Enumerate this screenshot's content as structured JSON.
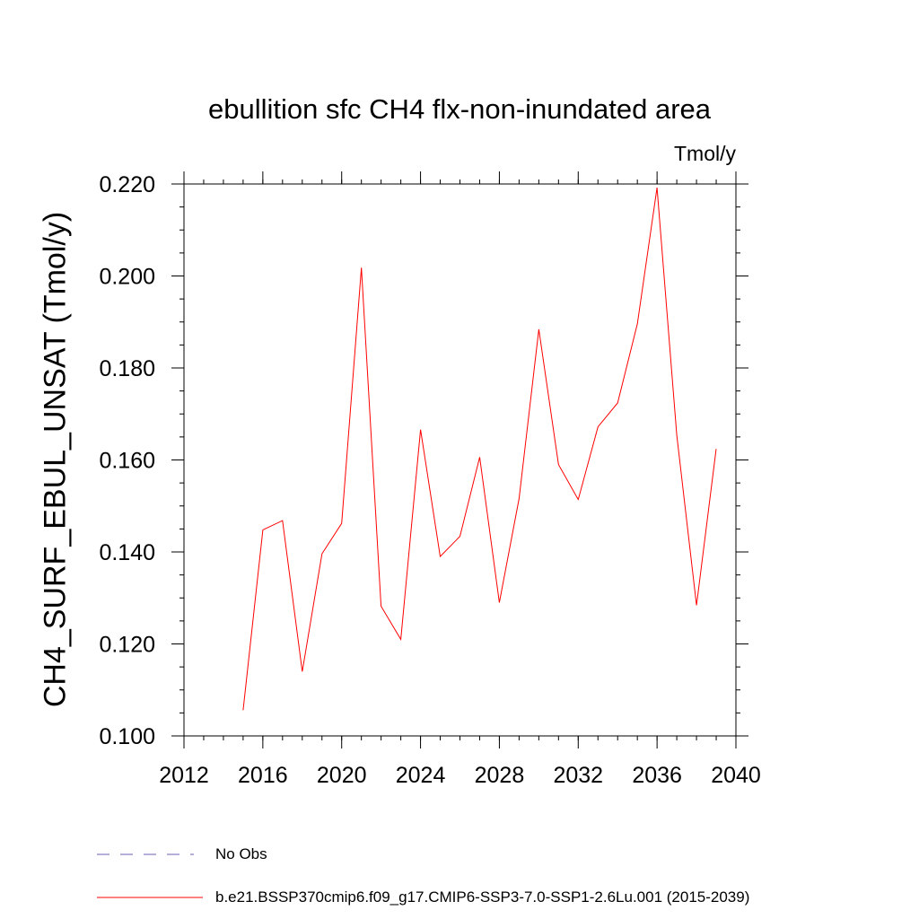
{
  "chart_data": {
    "type": "line",
    "title": "ebullition sfc CH4 flx-non-inundated area",
    "units_label": "Tmol/y",
    "ylabel": "CH4_SURF_EBUL_UNSAT  (Tmol/y)",
    "xlabel": "",
    "xlim": [
      2012,
      2040
    ],
    "ylim": [
      0.1,
      0.22
    ],
    "x_ticks": [
      2012,
      2016,
      2020,
      2024,
      2028,
      2032,
      2036,
      2040
    ],
    "y_ticks": [
      0.1,
      0.12,
      0.14,
      0.16,
      0.18,
      0.2,
      0.22
    ],
    "y_tick_labels": [
      "0.100",
      "0.120",
      "0.140",
      "0.160",
      "0.180",
      "0.200",
      "0.220"
    ],
    "x_minor_step": 1,
    "y_minor_step": 0.005,
    "grid": false,
    "series": [
      {
        "name": "b.e21.BSSP370cmip6.f09_g17.CMIP6-SSP3-7.0-SSP1-2.6Lu.001 (2015-2039)",
        "color": "#ff0000",
        "style": "solid",
        "x": [
          2015,
          2016,
          2017,
          2018,
          2019,
          2020,
          2021,
          2022,
          2023,
          2024,
          2025,
          2026,
          2027,
          2028,
          2029,
          2030,
          2031,
          2032,
          2033,
          2034,
          2035,
          2036,
          2037,
          2038,
          2039
        ],
        "y": [
          0.1056,
          0.1448,
          0.1468,
          0.114,
          0.1396,
          0.1462,
          0.2018,
          0.1282,
          0.121,
          0.1666,
          0.139,
          0.1434,
          0.1606,
          0.129,
          0.1516,
          0.1884,
          0.159,
          0.1514,
          0.1672,
          0.1724,
          0.1896,
          0.2192,
          0.1654,
          0.1284,
          0.1624
        ]
      }
    ],
    "legend": [
      {
        "label": "No Obs",
        "color": "#6b5fb5",
        "style": "dashed"
      },
      {
        "label": "b.e21.BSSP370cmip6.f09_g17.CMIP6-SSP3-7.0-SSP1-2.6Lu.001 (2015-2039)",
        "color": "#ff0000",
        "style": "solid"
      }
    ],
    "legend_position": "bottom-left"
  }
}
